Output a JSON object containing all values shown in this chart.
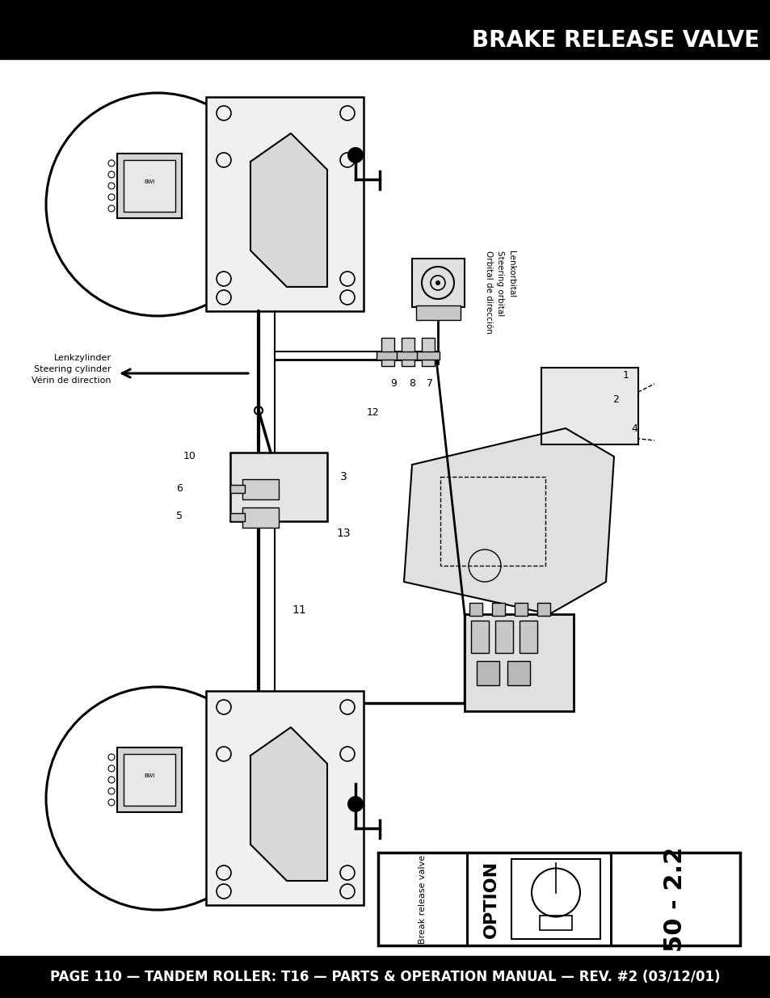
{
  "title": "BRAKE RELEASE VALVE",
  "footer_text": "PAGE 110 — TANDEM ROLLER: T16 — PARTS & OPERATION MANUAL — REV. #2 (03/12/01)",
  "header_bg": "#000000",
  "header_text_color": "#ffffff",
  "footer_bg": "#000000",
  "footer_text_color": "#ffffff",
  "page_bg": "#ffffff",
  "title_fontsize": 20,
  "footer_fontsize": 12,
  "label_lenkzylinder": "Lenkzylinder\nSteering cylinder\nVérin de direction",
  "label_lenkorbital": "Lenkorbital\nSteering orbital\nOrbital de dirección",
  "box_label_break": "Break release valve",
  "box_label_option": "OPTION",
  "box_label_num": "50 - 2.2"
}
